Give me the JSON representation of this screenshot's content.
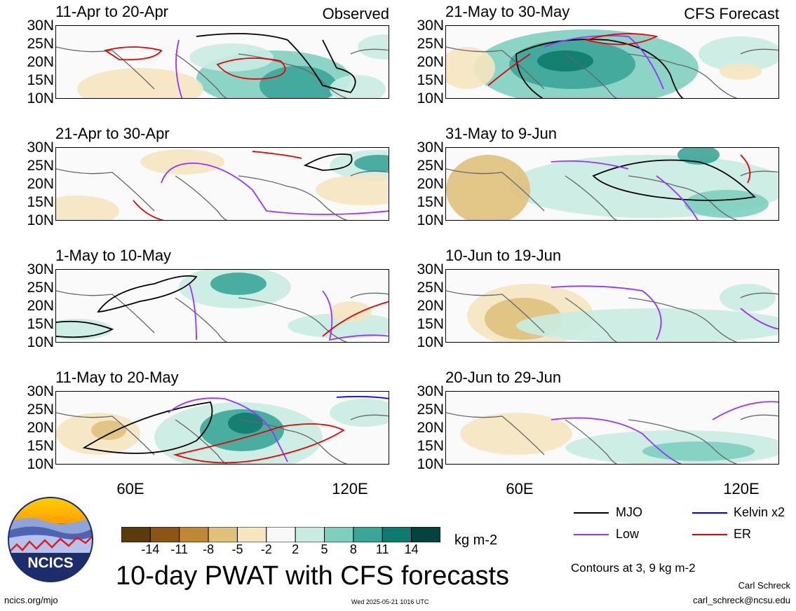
{
  "chart_data": {
    "type": "heatmap",
    "title": "10-day PWAT with CFS forecasts",
    "units": "kg m-2",
    "y_ticks": [
      "30N",
      "25N",
      "20N",
      "15N",
      "10N"
    ],
    "x_ticks": [
      "60E",
      "120E"
    ],
    "panels": [
      {
        "period": "11-Apr to 20-Apr",
        "tag": "Observed"
      },
      {
        "period": "21-Apr to 30-Apr",
        "tag": ""
      },
      {
        "period": "1-May to 10-May",
        "tag": ""
      },
      {
        "period": "11-May to 20-May",
        "tag": ""
      },
      {
        "period": "21-May to 30-May",
        "tag": "CFS Forecast"
      },
      {
        "period": "31-May to 9-Jun",
        "tag": ""
      },
      {
        "period": "10-Jun to 19-Jun",
        "tag": ""
      },
      {
        "period": "20-Jun to 29-Jun",
        "tag": ""
      }
    ],
    "colorbar": {
      "labels": [
        "-14",
        "-11",
        "-8",
        "-5",
        "-2",
        "2",
        "5",
        "8",
        "11",
        "14"
      ],
      "colors": [
        "#5c3a0b",
        "#8c5514",
        "#c08836",
        "#dfc17c",
        "#f5e6c0",
        "#f8f8f8",
        "#c9ece2",
        "#7fcfbf",
        "#3ba598",
        "#0f7a6e",
        "#04443d"
      ]
    },
    "legend": [
      {
        "label": "MJO",
        "color": "#000000"
      },
      {
        "label": "Kelvin x2",
        "color": "#0000ff"
      },
      {
        "label": "Low",
        "color": "#9933ff"
      },
      {
        "label": "ER",
        "color": "#e60000"
      }
    ],
    "contour_note": "Contours at 3, 9 kg m-2"
  },
  "footer": {
    "logo_text": "NCICS",
    "site": "ncics.org/mjo",
    "timestamp": "Wed 2025-05-21 1016 UTC",
    "author": "Carl Schreck",
    "email": "carl_schreck@ncsu.edu"
  }
}
